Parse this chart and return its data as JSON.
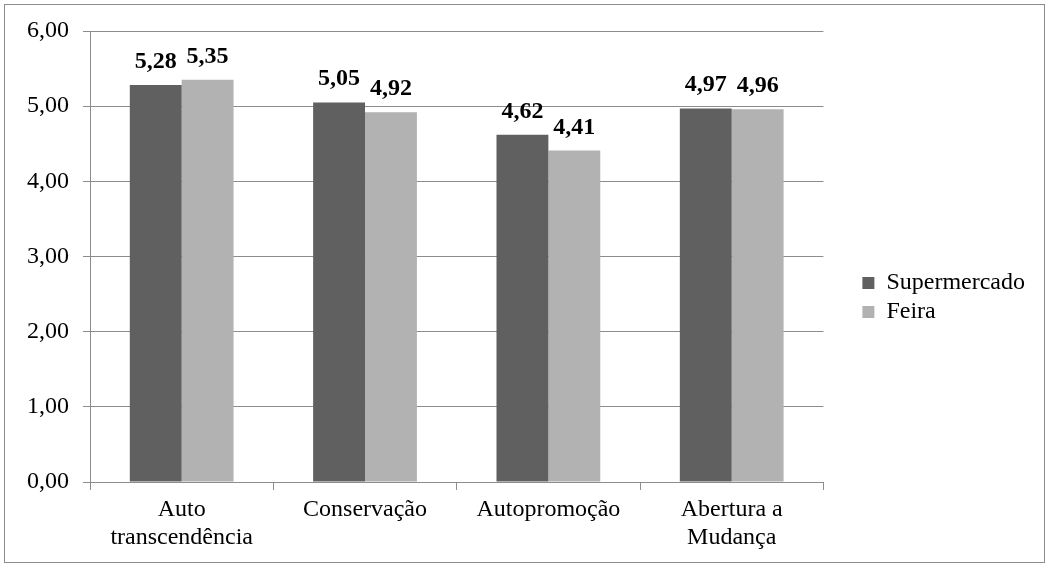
{
  "chart_data": {
    "type": "bar",
    "categories": [
      "Auto transcendência",
      "Conservação",
      "Autopromoção",
      "Abertura a Mudança"
    ],
    "series": [
      {
        "name": "Supermercado",
        "color": "#606060",
        "values": [
          5.28,
          5.05,
          4.62,
          4.97
        ],
        "value_labels": [
          "5,28",
          "5,05",
          "4,62",
          "4,97"
        ]
      },
      {
        "name": "Feira",
        "color": "#b2b2b2",
        "values": [
          5.35,
          4.92,
          4.41,
          4.96
        ],
        "value_labels": [
          "5,35",
          "4,92",
          "4,41",
          "4,96"
        ]
      }
    ],
    "ylim": [
      0,
      6
    ],
    "yticks": [
      {
        "value": 0,
        "label": "0,00"
      },
      {
        "value": 1,
        "label": "1,00"
      },
      {
        "value": 2,
        "label": "2,00"
      },
      {
        "value": 3,
        "label": "3,00"
      },
      {
        "value": 4,
        "label": "4,00"
      },
      {
        "value": 5,
        "label": "5,00"
      },
      {
        "value": 6,
        "label": "6,00"
      }
    ],
    "grid": "y",
    "legend": "right"
  }
}
